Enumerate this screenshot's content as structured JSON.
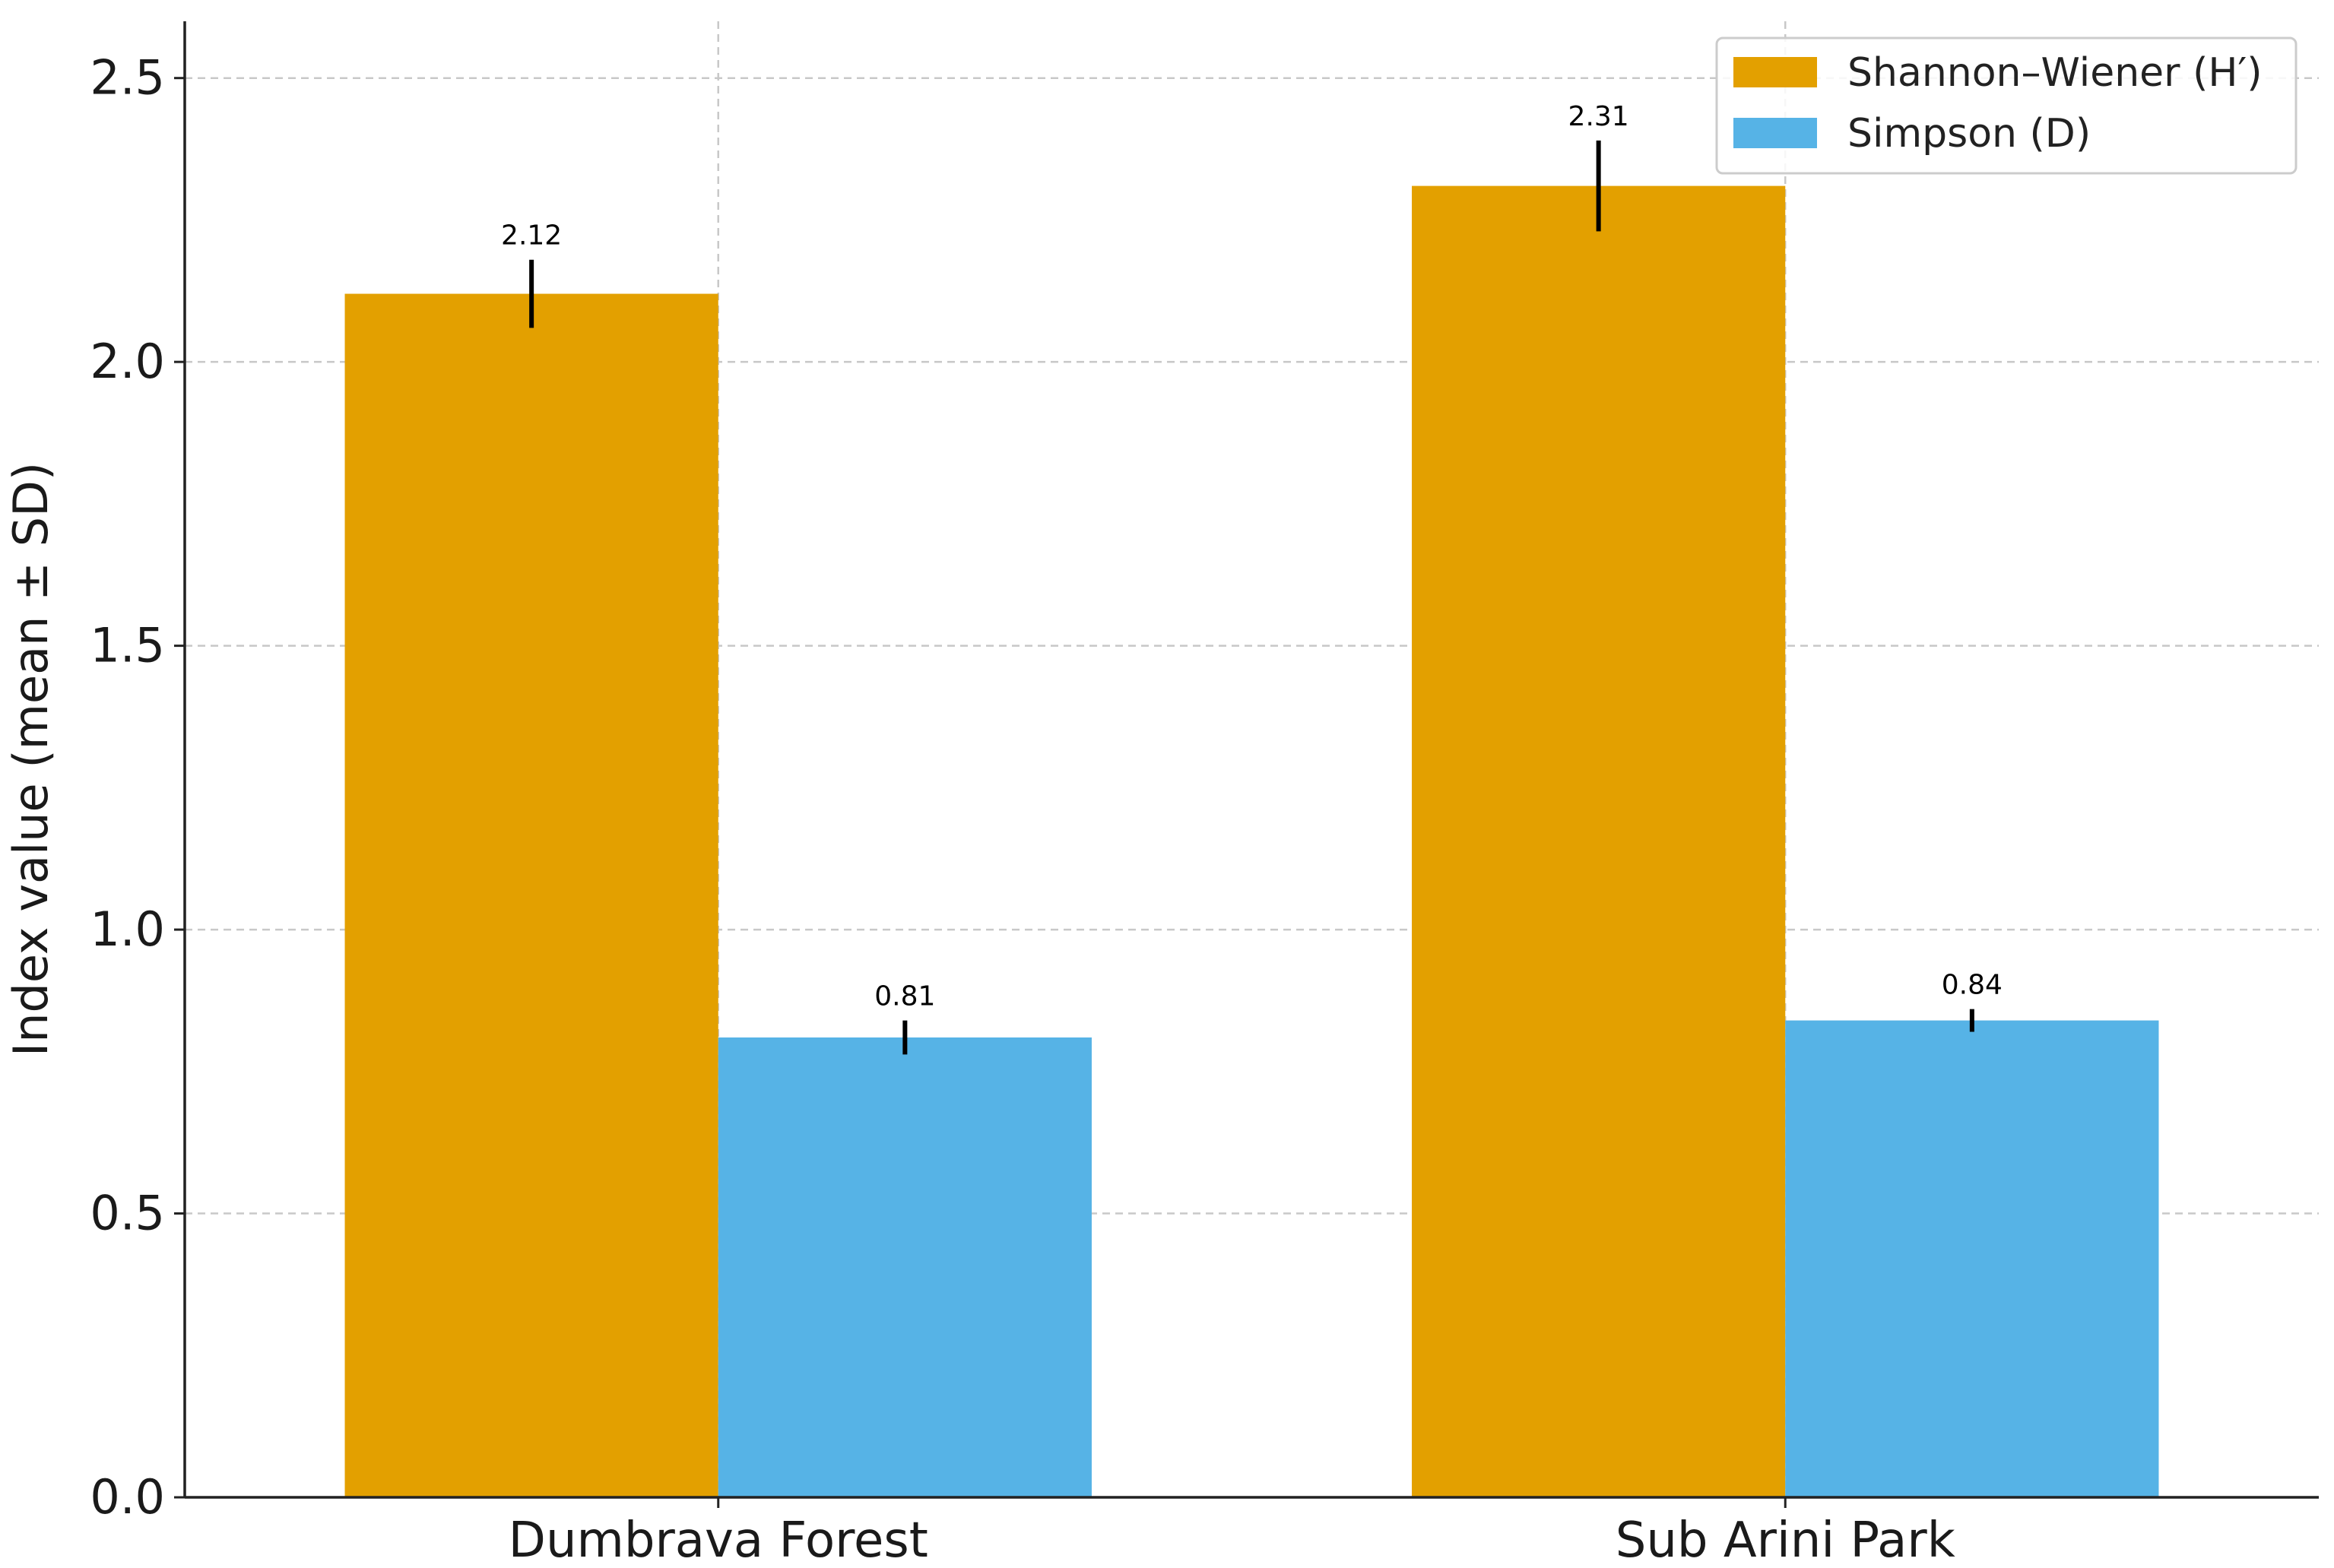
{
  "chart_data": {
    "type": "bar",
    "title": "",
    "xlabel": "",
    "ylabel": "Index value (mean ± SD)",
    "categories": [
      "Dumbrava Forest",
      "Sub Arini Park"
    ],
    "series": [
      {
        "name": "Shannon–Wiener (H′)",
        "values": [
          2.12,
          2.31
        ],
        "errors": [
          0.06,
          0.08
        ],
        "labels": [
          "2.12",
          "2.31"
        ],
        "color": "#E3A000"
      },
      {
        "name": "Simpson (D)",
        "values": [
          0.81,
          0.84
        ],
        "errors": [
          0.03,
          0.02
        ],
        "labels": [
          "0.81",
          "0.84"
        ],
        "color": "#56B3E6"
      }
    ],
    "ylim": [
      0,
      2.6
    ],
    "yticks": [
      "0.0",
      "0.5",
      "1.0",
      "1.5",
      "2.0",
      "2.5"
    ],
    "grid": true,
    "legend_position": "top-right"
  }
}
